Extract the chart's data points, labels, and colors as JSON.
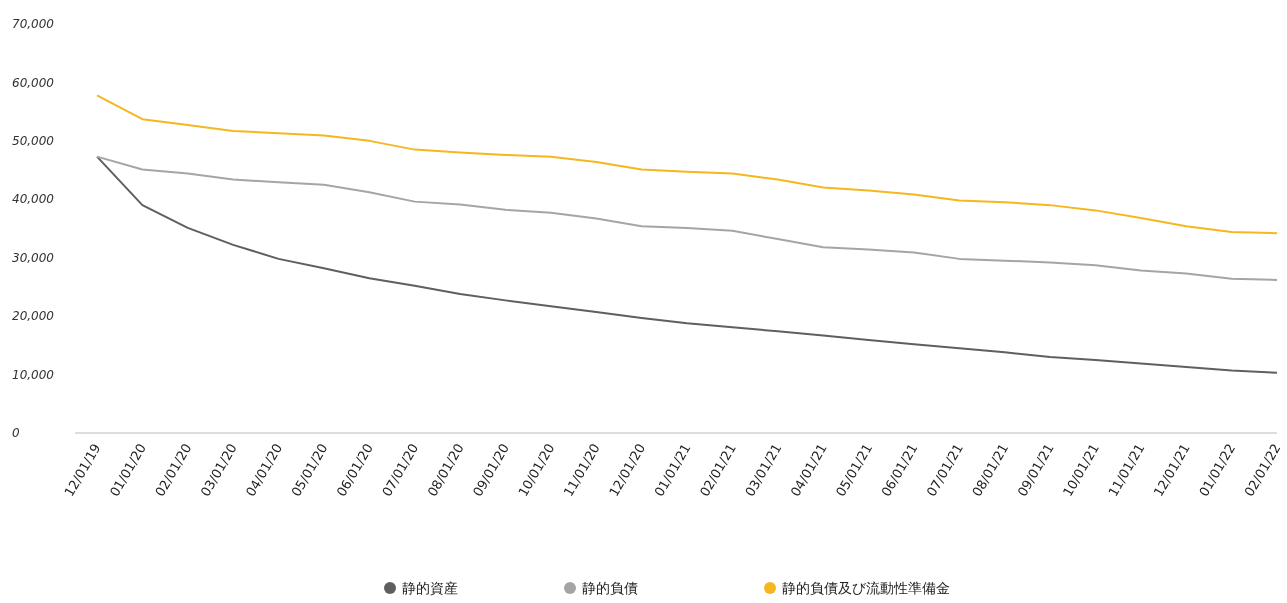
{
  "chart_data": {
    "type": "line",
    "categories": [
      "12/01/19",
      "01/01/20",
      "02/01/20",
      "03/01/20",
      "04/01/20",
      "05/01/20",
      "06/01/20",
      "07/01/20",
      "08/01/20",
      "09/01/20",
      "10/01/20",
      "11/01/20",
      "12/01/20",
      "01/01/21",
      "02/01/21",
      "03/01/21",
      "04/01/21",
      "05/01/21",
      "06/01/21",
      "07/01/21",
      "08/01/21",
      "09/01/21",
      "10/01/21",
      "11/01/21",
      "12/01/21",
      "01/01/22",
      "02/01/22"
    ],
    "series": [
      {
        "name": "静的資産",
        "color": "#5f5f5f",
        "values": [
          47300,
          39000,
          35100,
          32200,
          29800,
          28200,
          26500,
          25200,
          23800,
          22700,
          21700,
          20700,
          19700,
          18800,
          18100,
          17400,
          16700,
          15900,
          15200,
          14500,
          13800,
          13000,
          12500,
          11900,
          11300,
          10700,
          10300
        ]
      },
      {
        "name": "静的負債",
        "color": "#a5a5a5",
        "values": [
          47300,
          45100,
          44400,
          43400,
          42900,
          42500,
          41200,
          39600,
          39100,
          38200,
          37700,
          36700,
          35400,
          35100,
          34600,
          33200,
          31800,
          31400,
          30900,
          29800,
          29500,
          29200,
          28700,
          27800,
          27300,
          26400,
          26200
        ]
      },
      {
        "name": "静的負債及び流動性準備金",
        "color": "#f5b71f",
        "values": [
          57800,
          53700,
          52700,
          51700,
          51300,
          50900,
          50000,
          48500,
          48000,
          47600,
          47300,
          46400,
          45100,
          44700,
          44400,
          43400,
          42000,
          41500,
          40800,
          39800,
          39500,
          39000,
          38100,
          36800,
          35400,
          34400,
          34200
        ]
      }
    ],
    "ylim": [
      0,
      70000
    ],
    "yticks": [
      {
        "value": 0,
        "label": "0"
      },
      {
        "value": 10000,
        "label": "10,000"
      },
      {
        "value": 20000,
        "label": "20,000"
      },
      {
        "value": 30000,
        "label": "30,000"
      },
      {
        "value": 40000,
        "label": "40,000"
      },
      {
        "value": 50000,
        "label": "50,000"
      },
      {
        "value": 60000,
        "label": "60,000"
      },
      {
        "value": 70000,
        "label": "70,000"
      }
    ],
    "grid": false,
    "legend": "bottom",
    "marker": "none",
    "line_style": "solid"
  }
}
